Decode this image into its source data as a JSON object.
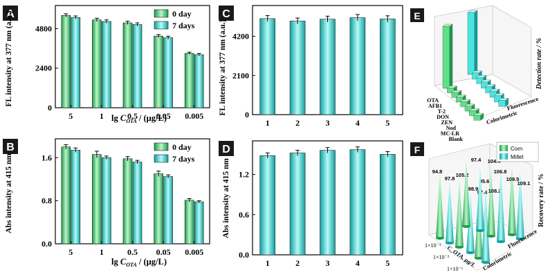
{
  "colors": {
    "green": "#5fe08a",
    "green_dark": "#1f9a4c",
    "cyan": "#49e6e0",
    "cyan_dark": "#119f9d",
    "panel_label_bg": "#1a1a1a",
    "panel_label_fg": "#ffffff"
  },
  "chart_data": [
    {
      "id": "A",
      "type": "bar",
      "panel_label": "A",
      "ylabel": "FL intensity at 377 nm (a.u.)",
      "xlabel_prefix": "lg ",
      "xlabel_var": "C",
      "xlabel_sub": "OTA",
      "xlabel_suffix": " / (μg/L)",
      "categories": [
        "5",
        "1",
        "0.5",
        "0.05",
        "0.005"
      ],
      "yticks": [
        "0",
        "2400",
        "4800"
      ],
      "ytick_values": [
        0,
        2400,
        4800
      ],
      "ylim": [
        0,
        6200
      ],
      "legend_position": "top-right",
      "series": [
        {
          "name": "0 day",
          "values": [
            5600,
            5330,
            5150,
            4350,
            3300
          ],
          "errors": [
            100,
            100,
            100,
            90,
            70
          ]
        },
        {
          "name": "7 days",
          "values": [
            5480,
            5230,
            5050,
            4250,
            3220
          ],
          "errors": [
            90,
            100,
            100,
            90,
            70
          ]
        }
      ]
    },
    {
      "id": "B",
      "type": "bar",
      "panel_label": "B",
      "ylabel": "Abs intensity at 415 nm",
      "xlabel_prefix": "lg ",
      "xlabel_var": "C",
      "xlabel_sub": "OTA",
      "xlabel_suffix": " / (μg/L)",
      "categories": [
        "5",
        "1",
        "0.5",
        "0.05",
        "0.005"
      ],
      "yticks": [
        "0.0",
        "0.8",
        "1.6"
      ],
      "ytick_values": [
        0,
        0.8,
        1.6
      ],
      "ylim": [
        0,
        1.95
      ],
      "legend_position": "top-right",
      "series": [
        {
          "name": "0 day",
          "values": [
            1.8,
            1.66,
            1.58,
            1.3,
            0.81
          ],
          "errors": [
            0.04,
            0.06,
            0.04,
            0.05,
            0.03
          ]
        },
        {
          "name": "7 days",
          "values": [
            1.74,
            1.6,
            1.52,
            1.25,
            0.78
          ],
          "errors": [
            0.04,
            0.03,
            0.03,
            0.03,
            0.02
          ]
        }
      ]
    },
    {
      "id": "C",
      "type": "bar",
      "panel_label": "C",
      "ylabel": "FL intensity at 377 nm (a.u.)",
      "categories": [
        "1",
        "2",
        "3",
        "4",
        "5"
      ],
      "yticks": [
        "0",
        "2100",
        "4200"
      ],
      "ytick_values": [
        0,
        2100,
        4200
      ],
      "ylim": [
        0,
        5850
      ],
      "series": [
        {
          "name": "",
          "values": [
            5150,
            5020,
            5120,
            5200,
            5130
          ],
          "errors": [
            160,
            160,
            160,
            170,
            170
          ]
        }
      ]
    },
    {
      "id": "D",
      "type": "bar",
      "panel_label": "D",
      "ylabel": "Abs intensity at 415 nm",
      "categories": [
        "1",
        "2",
        "3",
        "4",
        "5"
      ],
      "yticks": [
        "0.0",
        "0.6",
        "1.2"
      ],
      "ytick_values": [
        0,
        0.6,
        1.2
      ],
      "ylim": [
        0,
        1.7
      ],
      "series": [
        {
          "name": "",
          "values": [
            1.48,
            1.52,
            1.56,
            1.57,
            1.5
          ],
          "errors": [
            0.04,
            0.04,
            0.04,
            0.04,
            0.04
          ]
        }
      ]
    },
    {
      "id": "E",
      "type": "bar",
      "panel_label": "E",
      "zlabel": "Detection rate / %",
      "groups": [
        "Colorimetric",
        "Fluorescence"
      ],
      "categories": [
        "OTA",
        "AFB1",
        "T-2",
        "DON",
        "ZEN",
        "Nod",
        "MC-LR",
        "Blank"
      ],
      "series": [
        {
          "name": "Colorimetric",
          "values": [
            100,
            8,
            8,
            8,
            8,
            8,
            8,
            8
          ]
        },
        {
          "name": "Fluorescence",
          "values": [
            100,
            10,
            10,
            10,
            10,
            10,
            10,
            10
          ]
        }
      ]
    },
    {
      "id": "F",
      "type": "bar",
      "panel_label": "F",
      "zlabel": "Recovery rate / %",
      "xlabel": "C_OTA, μg/L",
      "groups": [
        "Colorimetric",
        "Fluorescence"
      ],
      "concentration_labels": [
        "1×10⁻³",
        "1×10⁻²",
        "1×10⁻¹"
      ],
      "legend": [
        "Corn",
        "Millet"
      ],
      "data_labels": [
        "94.8",
        "97.8",
        "105.2",
        "98.9",
        "97.4",
        "95.6",
        "97.4",
        "104.4",
        "108.2",
        "106.8",
        "109.5",
        "109.1"
      ]
    }
  ]
}
